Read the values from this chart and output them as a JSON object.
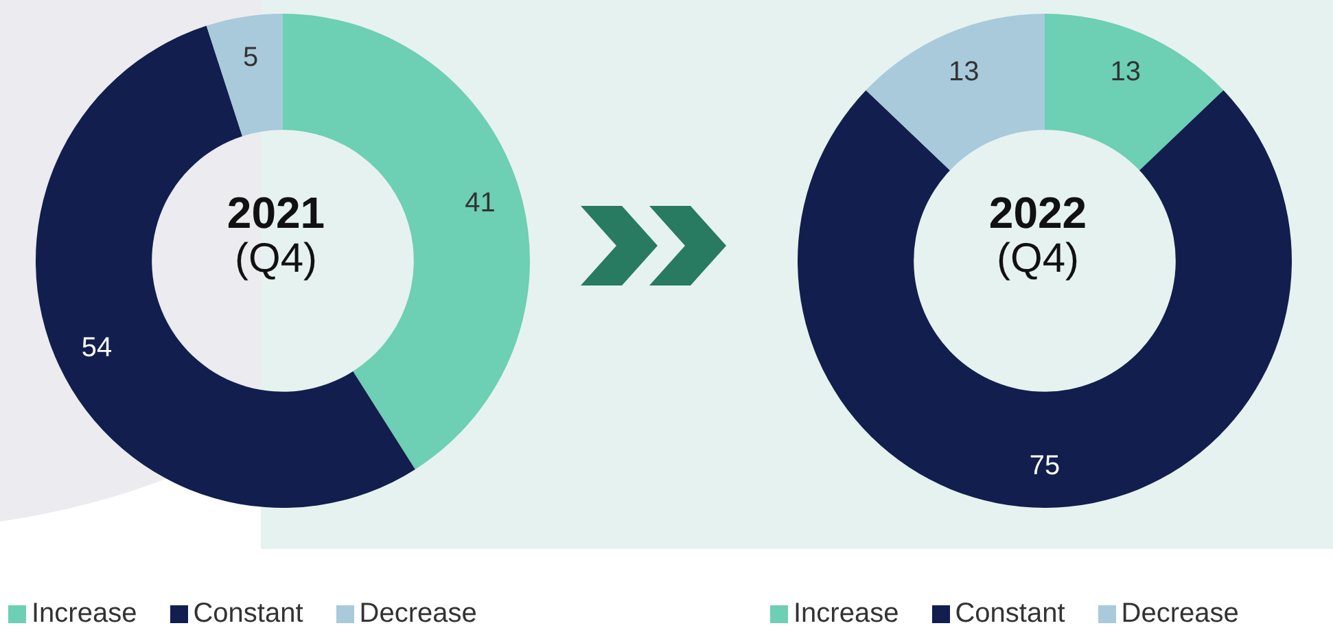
{
  "chart_data": [
    {
      "type": "donut",
      "title": "2021",
      "subtitle": "(Q4)",
      "categories": [
        "Increase",
        "Constant",
        "Decrease"
      ],
      "values": [
        41,
        54,
        5
      ],
      "colors": [
        "#6dcfb3",
        "#111e4e",
        "#a8cadb"
      ],
      "data_labels": true,
      "legend": "bottom left"
    },
    {
      "type": "donut",
      "title": "2022",
      "subtitle": "(Q4)",
      "categories": [
        "Increase",
        "Constant",
        "Decrease"
      ],
      "values": [
        13,
        75,
        13
      ],
      "colors": [
        "#6dcfb3",
        "#111e4e",
        "#a8cadb"
      ],
      "data_labels": true,
      "legend": "bottom left"
    }
  ]
}
